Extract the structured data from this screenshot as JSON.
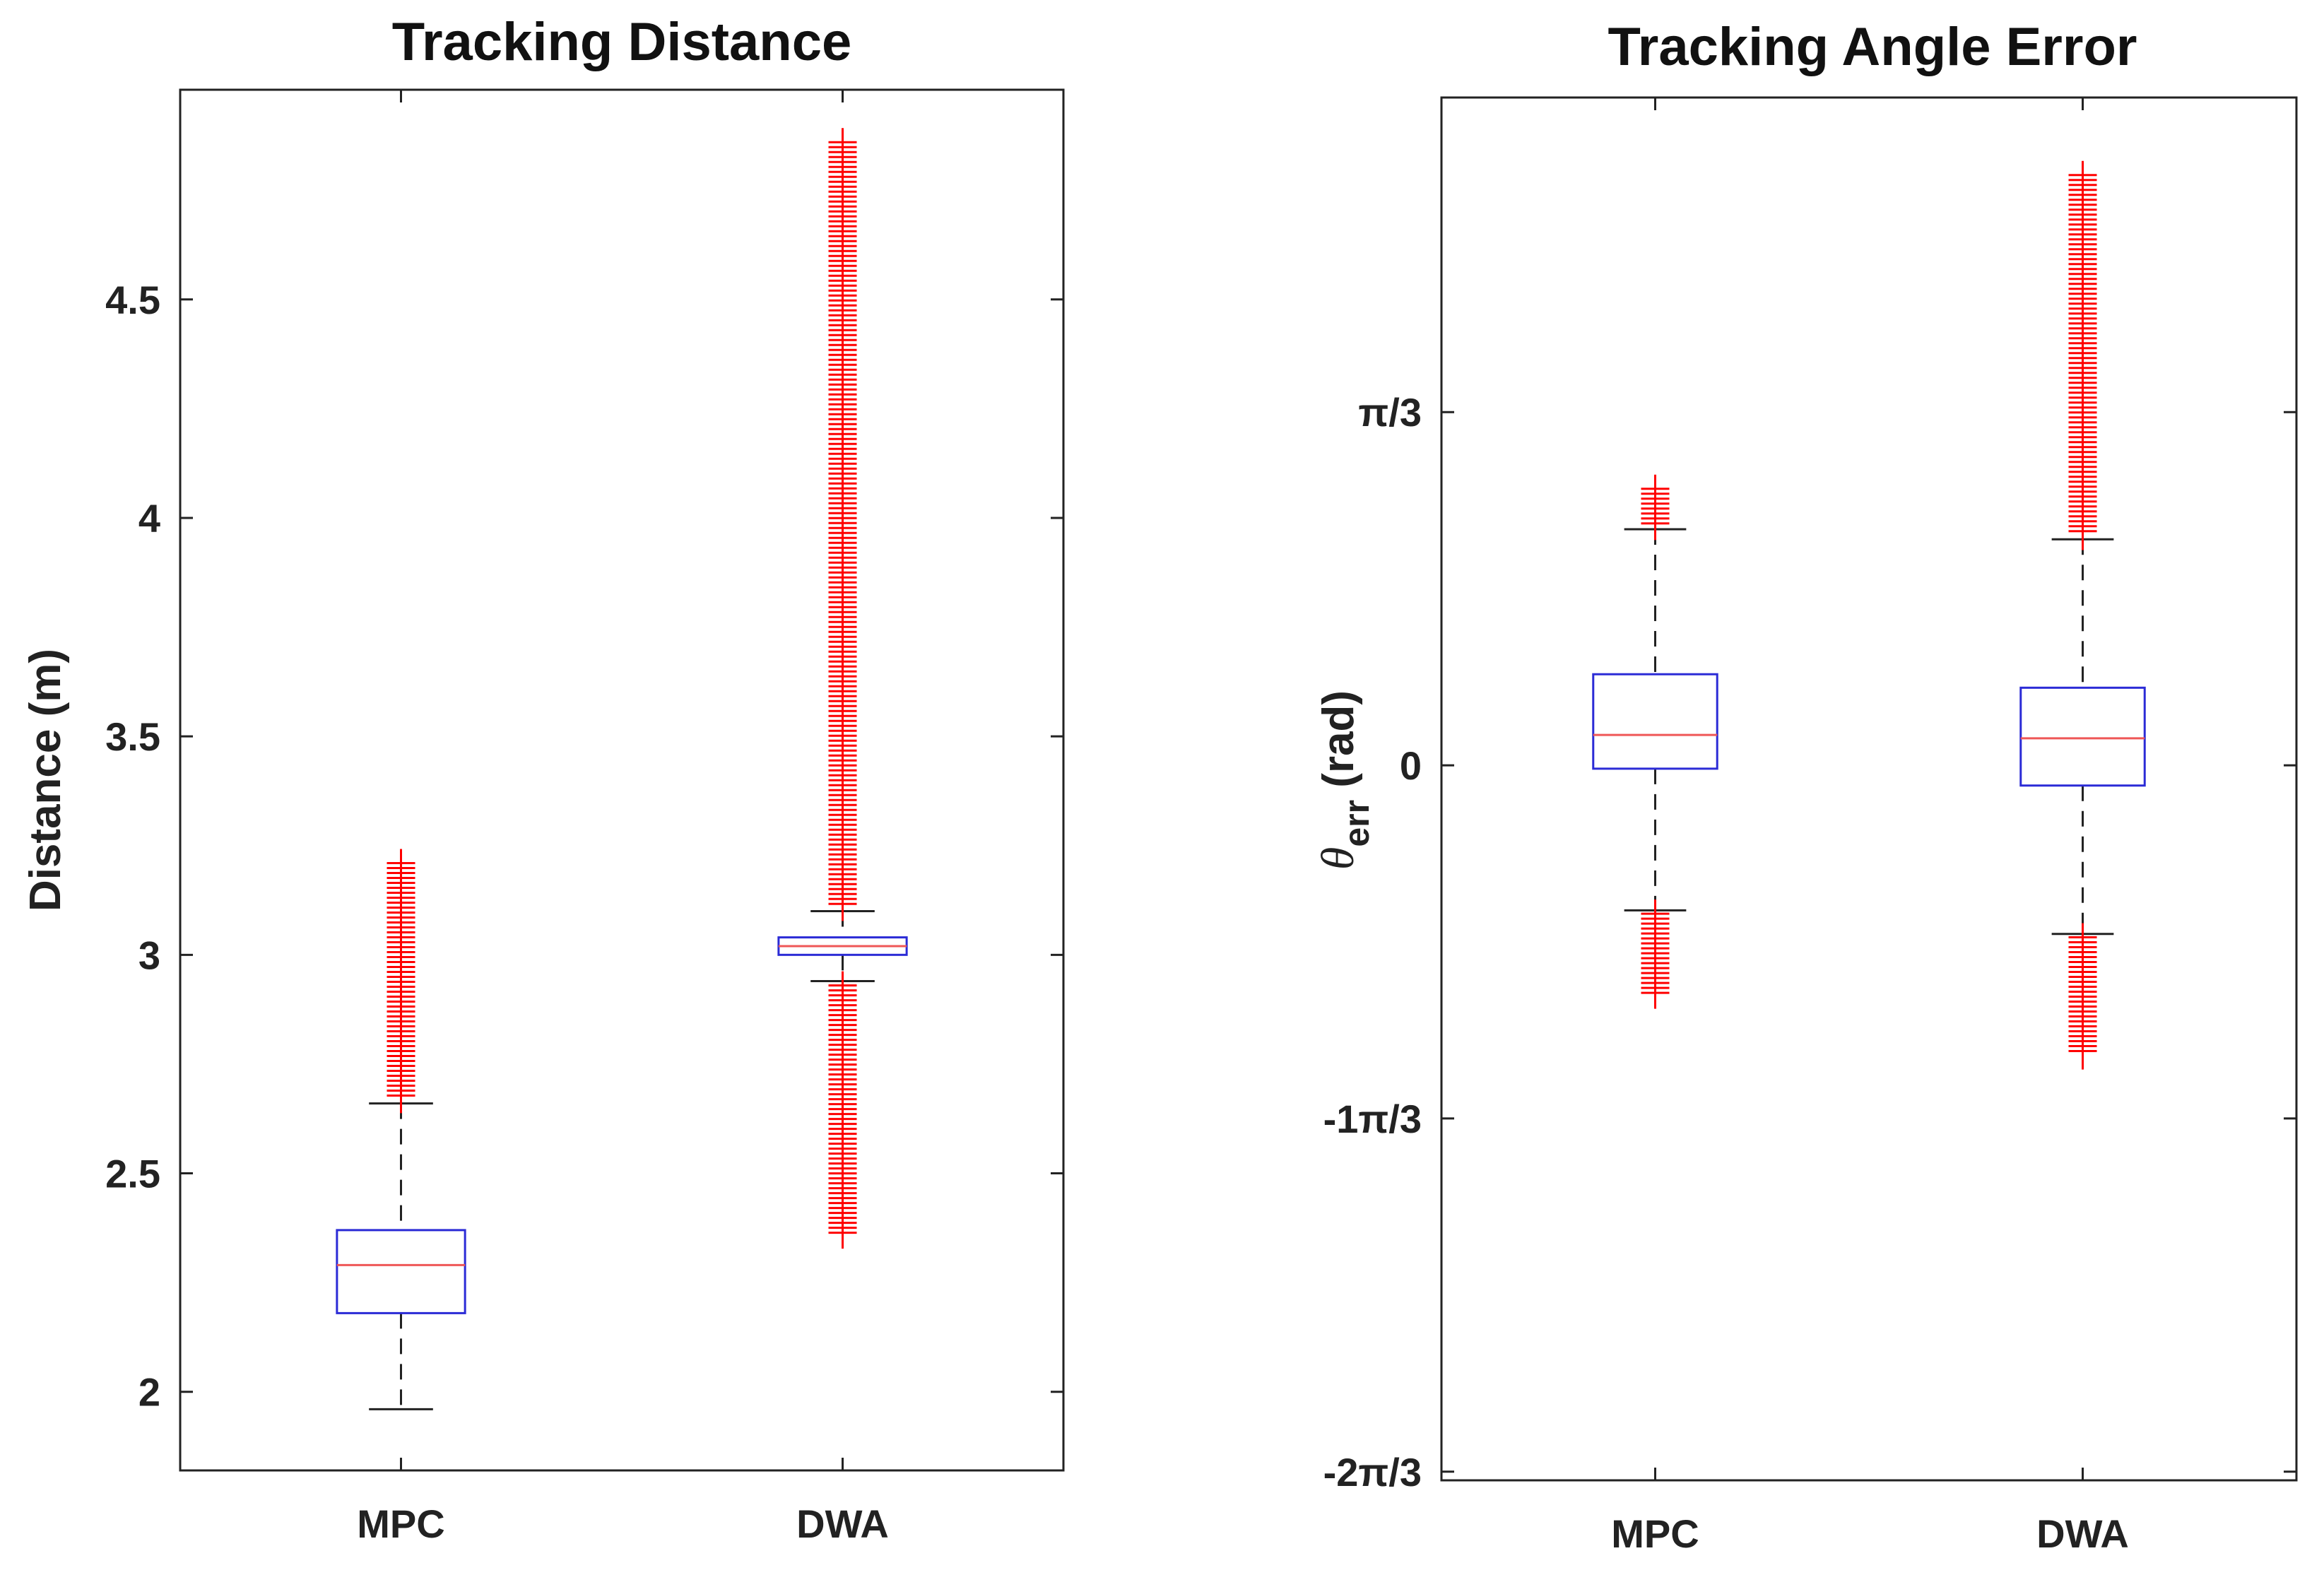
{
  "chart_data": [
    {
      "type": "box",
      "title": "Tracking Distance",
      "xlabel": "",
      "ylabel": "Distance (m)",
      "categories": [
        "MPC",
        "DWA"
      ],
      "ylim": [
        1.82,
        4.98
      ],
      "yticks": [
        2,
        2.5,
        3,
        3.5,
        4,
        4.5
      ],
      "yticklabels": [
        "2",
        "2.5",
        "3",
        "3.5",
        "4",
        "4.5"
      ],
      "boxes": [
        {
          "name": "MPC",
          "whisker_low": 1.96,
          "q1": 2.18,
          "median": 2.29,
          "q3": 2.37,
          "whisker_high": 2.66,
          "outliers_low": [],
          "outliers_high_range": [
            2.67,
            3.21
          ]
        },
        {
          "name": "DWA",
          "whisker_low": 2.94,
          "q1": 3.0,
          "median": 3.02,
          "q3": 3.04,
          "whisker_high": 3.1,
          "outliers_low_range": [
            2.36,
            2.93
          ],
          "outliers_high_range": [
            3.11,
            4.86
          ]
        }
      ],
      "colors": {
        "box": "#2b2bd6",
        "median": "#ef5757",
        "whisker": "#222222",
        "outlier": "#ff0000"
      }
    },
    {
      "type": "box",
      "title": "Tracking Angle Error",
      "xlabel": "",
      "ylabel": {
        "symbol": "θ",
        "subscript": "err",
        "unit": " (rad)"
      },
      "categories": [
        "MPC",
        "DWA"
      ],
      "ylim": [
        -2.12,
        1.98
      ],
      "yticks": [
        -2.0944,
        -1.0472,
        0,
        1.0472
      ],
      "yticklabels": [
        "-2π/3",
        "-1π/3",
        "0",
        "π/3"
      ],
      "boxes": [
        {
          "name": "MPC",
          "whisker_low": -0.43,
          "q1": -0.01,
          "median": 0.09,
          "q3": 0.27,
          "whisker_high": 0.7,
          "outliers_low_range": [
            -0.68,
            -0.44
          ],
          "outliers_high_range": [
            0.71,
            0.82
          ]
        },
        {
          "name": "DWA",
          "whisker_low": -0.5,
          "q1": -0.06,
          "median": 0.08,
          "q3": 0.23,
          "whisker_high": 0.67,
          "outliers_low_range": [
            -0.86,
            -0.51
          ],
          "outliers_high_range": [
            0.68,
            1.75
          ]
        }
      ],
      "colors": {
        "box": "#2b2bd6",
        "median": "#ef5757",
        "whisker": "#222222",
        "outlier": "#ff0000"
      }
    }
  ]
}
